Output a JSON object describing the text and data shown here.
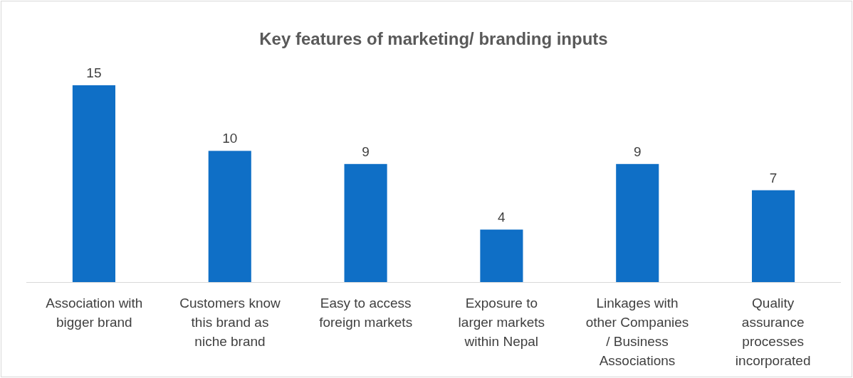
{
  "chart_data": {
    "type": "bar",
    "title": "Key features of marketing/ branding inputs",
    "categories": [
      "Association with bigger brand",
      "Customers know this brand as niche brand",
      "Easy to access foreign markets",
      "Exposure to larger markets within Nepal",
      "Linkages with other Companies / Business Associations",
      "Quality assurance processes incorporated"
    ],
    "values": [
      15,
      10,
      9,
      4,
      9,
      7
    ],
    "color": "#0f6fc6",
    "data_labels": true
  }
}
